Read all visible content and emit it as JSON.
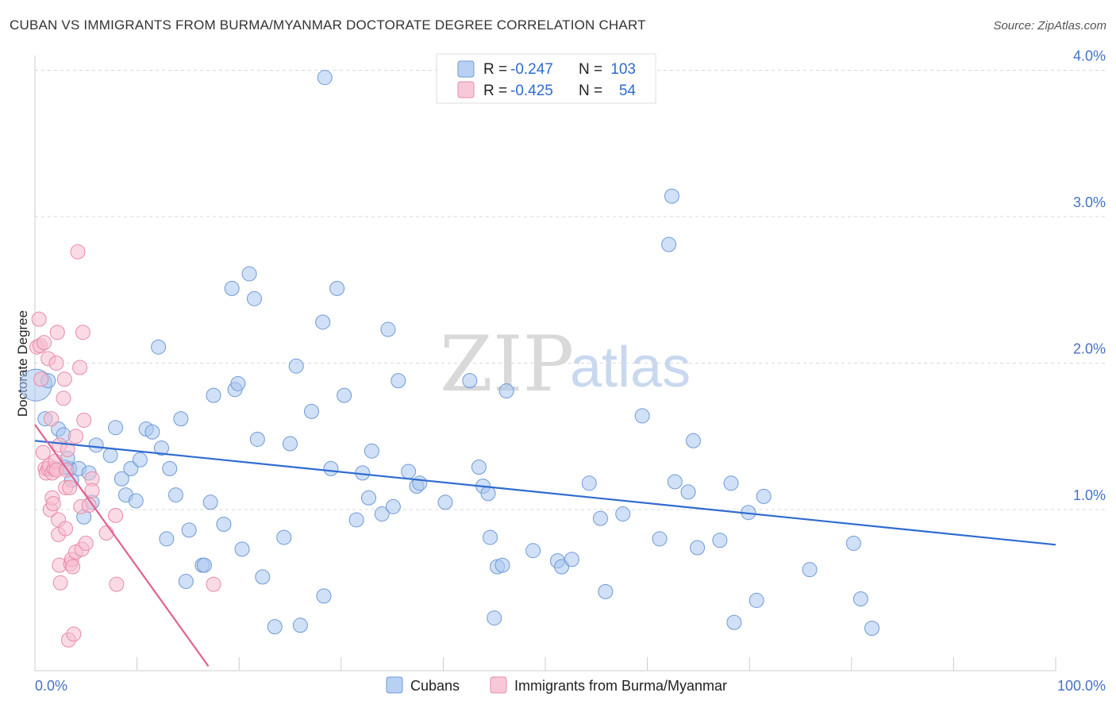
{
  "header": {
    "title": "CUBAN VS IMMIGRANTS FROM BURMA/MYANMAR DOCTORATE DEGREE CORRELATION CHART",
    "source": "Source: ZipAtlas.com"
  },
  "watermark": {
    "zip": "ZIP",
    "atlas": "atlas"
  },
  "colors": {
    "series1_fill": "#a9c6ef",
    "series1_stroke": "#6f9ad6",
    "series1_line": "#2e6bd0",
    "series2_fill": "#f6bdd0",
    "series2_stroke": "#e88aa8",
    "series2_line": "#e0628e",
    "tick_text": "#4472c4",
    "grid": "#d8d8d8"
  },
  "legend": {
    "rows": [
      {
        "r_label": "R = ",
        "r_value": "-0.247",
        "n_label": "N = ",
        "n_value": "103"
      },
      {
        "r_label": "R = ",
        "r_value": "-0.425",
        "n_label": "N = ",
        "n_value": "54"
      }
    ]
  },
  "chart_data": {
    "type": "scatter",
    "title": "CUBAN VS IMMIGRANTS FROM BURMA/MYANMAR DOCTORATE DEGREE CORRELATION CHART",
    "xlabel": "",
    "ylabel": "Doctorate Degree",
    "xlim": [
      0,
      100
    ],
    "ylim": [
      -0.1,
      4.1
    ],
    "x_tick_labels": [
      "0.0%",
      "100.0%"
    ],
    "y_ticks": [
      1.0,
      2.0,
      3.0,
      4.0
    ],
    "y_tick_labels": [
      "1.0%",
      "2.0%",
      "3.0%",
      "4.0%"
    ],
    "grid": true,
    "legend_position": "top-center",
    "series": [
      {
        "name": "Cubans",
        "r": -0.247,
        "n": 103,
        "trend": {
          "x": [
            0,
            100
          ],
          "y": [
            1.47,
            0.76
          ]
        },
        "points": [
          [
            0.1,
            1.85
          ],
          [
            1.0,
            1.62
          ],
          [
            2.3,
            1.55
          ],
          [
            2.8,
            1.51
          ],
          [
            3.4,
            1.28
          ],
          [
            3.6,
            1.2
          ],
          [
            4.3,
            1.28
          ],
          [
            5.3,
            1.25
          ],
          [
            4.8,
            0.95
          ],
          [
            5.6,
            1.05
          ],
          [
            6.0,
            1.44
          ],
          [
            7.4,
            1.37
          ],
          [
            7.9,
            1.56
          ],
          [
            8.5,
            1.21
          ],
          [
            8.9,
            1.1
          ],
          [
            9.4,
            1.28
          ],
          [
            9.9,
            1.06
          ],
          [
            10.3,
            1.34
          ],
          [
            10.9,
            1.55
          ],
          [
            11.5,
            1.53
          ],
          [
            12.1,
            2.11
          ],
          [
            12.4,
            1.42
          ],
          [
            12.9,
            0.8
          ],
          [
            13.2,
            1.28
          ],
          [
            13.8,
            1.1
          ],
          [
            14.3,
            1.62
          ],
          [
            14.8,
            0.51
          ],
          [
            15.1,
            0.86
          ],
          [
            16.4,
            0.62
          ],
          [
            16.6,
            0.62
          ],
          [
            17.2,
            1.05
          ],
          [
            17.5,
            1.78
          ],
          [
            18.5,
            0.9
          ],
          [
            19.3,
            2.51
          ],
          [
            19.6,
            1.82
          ],
          [
            19.9,
            1.86
          ],
          [
            20.3,
            0.73
          ],
          [
            21.0,
            2.61
          ],
          [
            21.5,
            2.44
          ],
          [
            21.8,
            1.48
          ],
          [
            22.3,
            0.54
          ],
          [
            23.5,
            0.2
          ],
          [
            24.4,
            0.81
          ],
          [
            25.0,
            1.45
          ],
          [
            25.6,
            1.98
          ],
          [
            26.0,
            0.21
          ],
          [
            27.1,
            1.67
          ],
          [
            28.2,
            2.28
          ],
          [
            28.3,
            0.41
          ],
          [
            29.0,
            1.28
          ],
          [
            29.6,
            2.51
          ],
          [
            30.3,
            1.78
          ],
          [
            31.5,
            0.93
          ],
          [
            32.1,
            1.25
          ],
          [
            32.7,
            1.08
          ],
          [
            33.0,
            1.4
          ],
          [
            34.0,
            0.97
          ],
          [
            34.6,
            2.23
          ],
          [
            35.1,
            1.02
          ],
          [
            35.6,
            1.88
          ],
          [
            36.6,
            1.26
          ],
          [
            37.4,
            1.16
          ],
          [
            37.7,
            1.18
          ],
          [
            40.2,
            1.05
          ],
          [
            42.6,
            1.88
          ],
          [
            43.5,
            1.29
          ],
          [
            43.9,
            1.16
          ],
          [
            44.4,
            1.11
          ],
          [
            44.6,
            0.81
          ],
          [
            45.0,
            0.26
          ],
          [
            45.3,
            0.61
          ],
          [
            45.8,
            0.62
          ],
          [
            46.2,
            1.81
          ],
          [
            48.8,
            0.72
          ],
          [
            51.2,
            0.65
          ],
          [
            51.6,
            0.61
          ],
          [
            52.6,
            0.66
          ],
          [
            54.3,
            1.18
          ],
          [
            55.4,
            0.94
          ],
          [
            55.9,
            0.44
          ],
          [
            57.6,
            0.97
          ],
          [
            59.5,
            1.64
          ],
          [
            61.2,
            0.8
          ],
          [
            62.1,
            2.81
          ],
          [
            62.4,
            3.14
          ],
          [
            62.7,
            1.19
          ],
          [
            64.0,
            1.12
          ],
          [
            64.5,
            1.47
          ],
          [
            64.9,
            0.74
          ],
          [
            67.1,
            0.79
          ],
          [
            68.2,
            1.18
          ],
          [
            68.5,
            0.23
          ],
          [
            69.9,
            0.98
          ],
          [
            70.7,
            0.38
          ],
          [
            71.4,
            1.09
          ],
          [
            75.9,
            0.59
          ],
          [
            80.2,
            0.77
          ],
          [
            80.9,
            0.39
          ],
          [
            82.0,
            0.19
          ],
          [
            28.4,
            3.95
          ],
          [
            1.3,
            1.88
          ],
          [
            2.9,
            1.29
          ],
          [
            3.2,
            1.35
          ]
        ]
      },
      {
        "name": "Immigrants from Burma/Myanmar",
        "r": -0.425,
        "n": 54,
        "trend": {
          "x": [
            0,
            17
          ],
          "y": [
            1.58,
            -0.07
          ]
        },
        "points": [
          [
            0.2,
            2.11
          ],
          [
            0.4,
            2.3
          ],
          [
            0.5,
            2.12
          ],
          [
            0.6,
            1.89
          ],
          [
            0.8,
            1.39
          ],
          [
            0.9,
            2.14
          ],
          [
            1.0,
            1.28
          ],
          [
            1.1,
            1.25
          ],
          [
            1.3,
            2.03
          ],
          [
            1.3,
            1.28
          ],
          [
            1.4,
            1.3
          ],
          [
            1.5,
            1.0
          ],
          [
            1.6,
            1.62
          ],
          [
            1.7,
            1.08
          ],
          [
            1.7,
            1.25
          ],
          [
            1.8,
            1.04
          ],
          [
            1.9,
            1.28
          ],
          [
            2.0,
            1.33
          ],
          [
            2.1,
            1.27
          ],
          [
            2.1,
            2.0
          ],
          [
            2.2,
            2.21
          ],
          [
            2.3,
            0.93
          ],
          [
            2.3,
            0.83
          ],
          [
            2.4,
            1.44
          ],
          [
            2.5,
            0.5
          ],
          [
            2.4,
            0.62
          ],
          [
            2.8,
            1.76
          ],
          [
            2.9,
            1.89
          ],
          [
            3.0,
            1.15
          ],
          [
            3.0,
            0.87
          ],
          [
            3.1,
            1.27
          ],
          [
            3.2,
            1.41
          ],
          [
            3.3,
            0.11
          ],
          [
            3.4,
            1.15
          ],
          [
            3.5,
            0.63
          ],
          [
            3.6,
            0.66
          ],
          [
            3.7,
            0.61
          ],
          [
            3.8,
            0.15
          ],
          [
            4.0,
            1.5
          ],
          [
            4.2,
            2.76
          ],
          [
            4.0,
            0.71
          ],
          [
            4.4,
            1.97
          ],
          [
            4.5,
            1.02
          ],
          [
            4.6,
            0.73
          ],
          [
            4.7,
            2.21
          ],
          [
            4.8,
            1.61
          ],
          [
            5.0,
            0.77
          ],
          [
            5.3,
            1.03
          ],
          [
            5.6,
            1.21
          ],
          [
            5.6,
            1.13
          ],
          [
            7.0,
            0.84
          ],
          [
            7.9,
            0.96
          ],
          [
            8.0,
            0.49
          ],
          [
            17.5,
            0.49
          ]
        ]
      }
    ]
  }
}
